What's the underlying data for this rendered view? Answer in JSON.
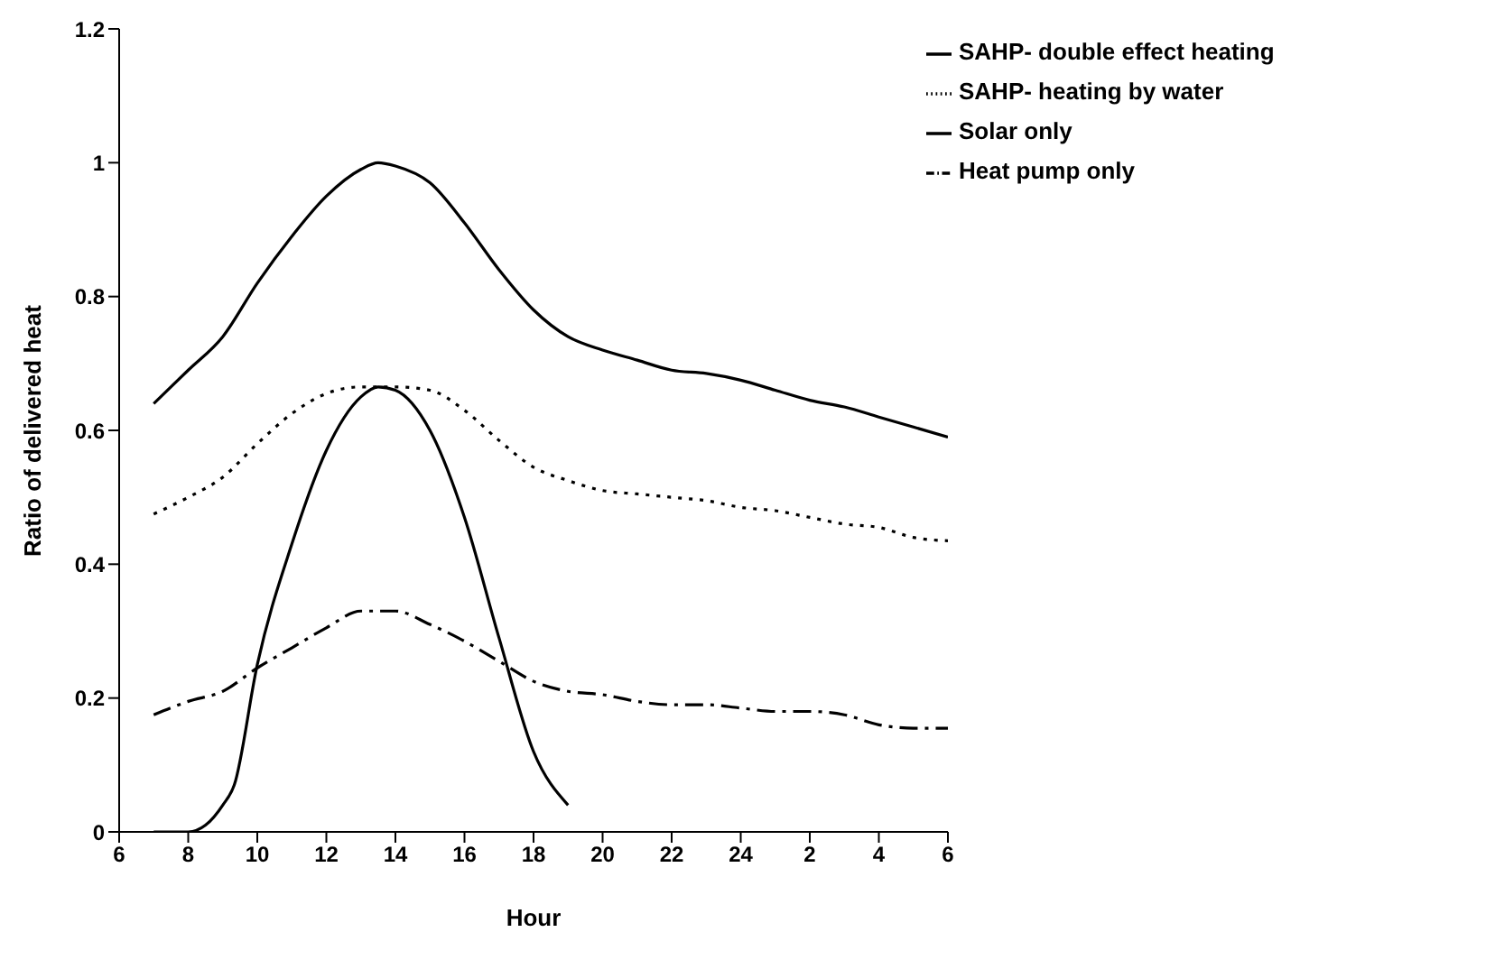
{
  "chart_data": {
    "type": "line",
    "xlabel": "Hour",
    "ylabel": "Ratio of delivered heat",
    "xlim": [
      "--01-01T06:00",
      "--01-02T06:00"
    ],
    "xticks": [
      {
        "value": "--01-01T06:00",
        "label": "6"
      },
      {
        "value": "--01-01T08:00",
        "label": "8"
      },
      {
        "value": "--01-01T10:00",
        "label": "10"
      },
      {
        "value": "--01-01T12:00",
        "label": "12"
      },
      {
        "value": "--01-01T14:00",
        "label": "14"
      },
      {
        "value": "--01-01T16:00",
        "label": "16"
      },
      {
        "value": "--01-01T18:00",
        "label": "18"
      },
      {
        "value": "--01-01T20:00",
        "label": "20"
      },
      {
        "value": "--01-01T22:00",
        "label": "22"
      },
      {
        "value": "--01-02T00:00",
        "label": "24"
      },
      {
        "value": "--01-02T02:00",
        "label": "2"
      },
      {
        "value": "--01-02T04:00",
        "label": "4"
      },
      {
        "value": "--01-02T06:00",
        "label": "6"
      }
    ],
    "ylim": [
      0,
      1.2
    ],
    "yticks": [
      0,
      0.2,
      0.4,
      0.6,
      0.8,
      1,
      1.2
    ],
    "legend": "top right",
    "series": [
      {
        "name": "SAHP- double effect heating",
        "color": "#000000",
        "line_style": "solid",
        "x": [
          "--01-01T07:00",
          "--01-01T08:00",
          "--01-01T09:00",
          "--01-01T10:00",
          "--01-01T11:00",
          "--01-01T12:00",
          "--01-01T13:00",
          "--01-01T13:30",
          "--01-01T14:00",
          "--01-01T15:00",
          "--01-01T16:00",
          "--01-01T17:00",
          "--01-01T18:00",
          "--01-01T19:00",
          "--01-01T20:00",
          "--01-01T21:00",
          "--01-01T22:00",
          "--01-01T23:00",
          "--01-02T00:00",
          "--01-02T01:00",
          "--01-02T02:00",
          "--01-02T03:00",
          "--01-02T04:00",
          "--01-02T05:00",
          "--01-02T06:00"
        ],
        "values": [
          0.64,
          0.69,
          0.74,
          0.82,
          0.89,
          0.95,
          0.99,
          1.0,
          0.995,
          0.97,
          0.91,
          0.84,
          0.78,
          0.74,
          0.72,
          0.705,
          0.69,
          0.685,
          0.675,
          0.66,
          0.645,
          0.635,
          0.62,
          0.605,
          0.59
        ]
      },
      {
        "name": "SAHP- heating by water",
        "color": "#000000",
        "line_style": "dotted",
        "x": [
          "--01-01T07:00",
          "--01-01T08:00",
          "--01-01T09:00",
          "--01-01T10:00",
          "--01-01T11:00",
          "--01-01T12:00",
          "--01-01T13:00",
          "--01-01T14:00",
          "--01-01T15:00",
          "--01-01T16:00",
          "--01-01T17:00",
          "--01-01T18:00",
          "--01-01T19:00",
          "--01-01T20:00",
          "--01-01T21:00",
          "--01-01T22:00",
          "--01-01T23:00",
          "--01-02T00:00",
          "--01-02T01:00",
          "--01-02T02:00",
          "--01-02T03:00",
          "--01-02T04:00",
          "--01-02T05:00",
          "--01-02T06:00"
        ],
        "values": [
          0.475,
          0.5,
          0.53,
          0.58,
          0.625,
          0.655,
          0.665,
          0.665,
          0.66,
          0.63,
          0.585,
          0.545,
          0.525,
          0.51,
          0.505,
          0.5,
          0.495,
          0.485,
          0.48,
          0.47,
          0.46,
          0.455,
          0.44,
          0.435
        ]
      },
      {
        "name": "Solar only",
        "color": "#000000",
        "line_style": "solid",
        "x": [
          "--01-01T07:00",
          "--01-01T08:00",
          "--01-01T08:30",
          "--01-01T09:00",
          "--01-01T09:20",
          "--01-01T10:00",
          "--01-01T11:00",
          "--01-01T12:00",
          "--01-01T13:00",
          "--01-01T13:30",
          "--01-01T14:00",
          "--01-01T15:00",
          "--01-01T16:00",
          "--01-01T17:00",
          "--01-01T18:00",
          "--01-01T19:00"
        ],
        "values": [
          0,
          0,
          0.01,
          0.04,
          0.07,
          0.25,
          0.43,
          0.57,
          0.65,
          0.665,
          0.66,
          0.6,
          0.47,
          0.29,
          0.12,
          0.04
        ]
      },
      {
        "name": "Heat pump only",
        "color": "#000000",
        "line_style": "dashed",
        "x": [
          "--01-01T07:00",
          "--01-01T08:00",
          "--01-01T09:00",
          "--01-01T10:00",
          "--01-01T11:00",
          "--01-01T12:00",
          "--01-01T13:00",
          "--01-01T14:00",
          "--01-01T15:00",
          "--01-01T16:00",
          "--01-01T17:00",
          "--01-01T18:00",
          "--01-01T19:00",
          "--01-01T20:00",
          "--01-01T21:00",
          "--01-01T22:00",
          "--01-01T23:00",
          "--01-02T00:00",
          "--01-02T01:00",
          "--01-02T02:00",
          "--01-02T03:00",
          "--01-02T04:00",
          "--01-02T05:00",
          "--01-02T06:00"
        ],
        "values": [
          0.175,
          0.195,
          0.21,
          0.245,
          0.275,
          0.305,
          0.33,
          0.33,
          0.31,
          0.285,
          0.255,
          0.225,
          0.21,
          0.205,
          0.195,
          0.19,
          0.19,
          0.185,
          0.18,
          0.18,
          0.175,
          0.16,
          0.155,
          0.155
        ]
      }
    ]
  }
}
